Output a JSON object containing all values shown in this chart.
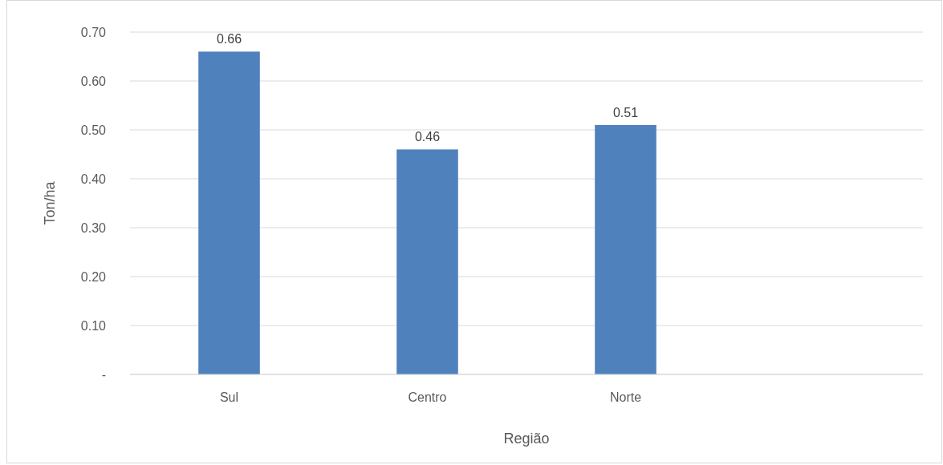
{
  "chart_data": {
    "type": "bar",
    "xlabel": "Região",
    "ylabel": "Ton/ha",
    "categories": [
      "Sul",
      "Centro",
      "Norte",
      null
    ],
    "values": [
      0.66,
      0.46,
      0.51,
      null
    ],
    "color": "#4f81bd",
    "ylim": [
      0,
      0.7
    ],
    "yticks": [
      {
        "value": 0,
        "label": "-"
      },
      {
        "value": 0.1,
        "label": "0.10"
      },
      {
        "value": 0.2,
        "label": "0.20"
      },
      {
        "value": 0.3,
        "label": "0.30"
      },
      {
        "value": 0.4,
        "label": "0.40"
      },
      {
        "value": 0.5,
        "label": "0.50"
      },
      {
        "value": 0.6,
        "label": "0.60"
      },
      {
        "value": 0.7,
        "label": "0.70"
      }
    ],
    "grid": "y",
    "data_labels": true
  }
}
